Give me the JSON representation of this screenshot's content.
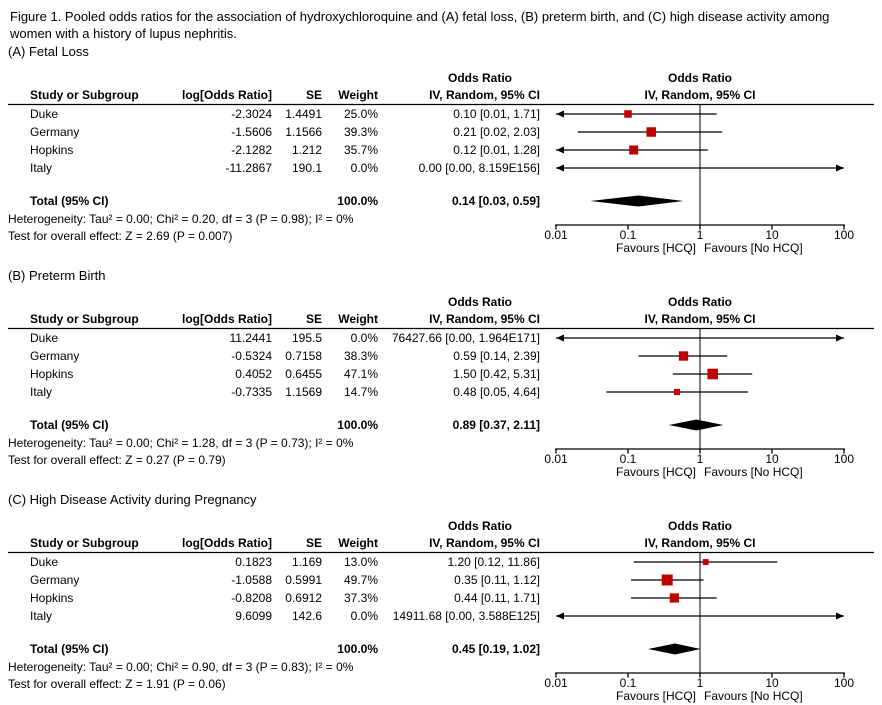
{
  "caption": "Figure 1. Pooled odds ratios for the association of hydroxychloroquine and (A) fetal loss, (B) preterm birth, and (C) high disease activity among women with a history of lupus nephritis.",
  "columns": {
    "study": "Study or Subgroup",
    "log_or": "log[Odds Ratio]",
    "se": "SE",
    "weight": "Weight",
    "effect": "Odds Ratio",
    "method": "IV, Random, 95% CI"
  },
  "axis": {
    "scale": "log",
    "min": 0.01,
    "max": 100,
    "ticks": [
      {
        "v": 0.01,
        "label": "0.01"
      },
      {
        "v": 0.1,
        "label": "0.1"
      },
      {
        "v": 1,
        "label": "1"
      },
      {
        "v": 10,
        "label": "10"
      },
      {
        "v": 100,
        "label": "100"
      }
    ],
    "favours_left": "Favours [HCQ]",
    "favours_right": "Favours [No HCQ]"
  },
  "style": {
    "marker_color": "#C00000",
    "line_color": "#000000",
    "diamond_color": "#000000"
  },
  "chart_data": [
    {
      "type": "forest",
      "label": "(A) Fetal Loss",
      "xscale": "log",
      "xlim": [
        0.01,
        100
      ],
      "studies": [
        {
          "name": "Duke",
          "log_or": "-2.3024",
          "se": "1.4491",
          "weight": "25.0%",
          "weight_pct": 25.0,
          "ci_text": "0.10 [0.01, 1.71]",
          "or": 0.1,
          "lo": 0.01,
          "hi": 1.71
        },
        {
          "name": "Germany",
          "log_or": "-1.5606",
          "se": "1.1566",
          "weight": "39.3%",
          "weight_pct": 39.3,
          "ci_text": "0.21 [0.02, 2.03]",
          "or": 0.21,
          "lo": 0.02,
          "hi": 2.03
        },
        {
          "name": "Hopkins",
          "log_or": "-2.1282",
          "se": "1.212",
          "weight": "35.7%",
          "weight_pct": 35.7,
          "ci_text": "0.12 [0.01, 1.28]",
          "or": 0.12,
          "lo": 0.01,
          "hi": 1.28
        },
        {
          "name": "Italy",
          "log_or": "-11.2867",
          "se": "190.1",
          "weight": "0.0%",
          "weight_pct": 0.0,
          "ci_text": "0.00 [0.00, 8.159E156]",
          "or": 1.25e-05,
          "lo": 0,
          "hi": 8.159e+156
        }
      ],
      "total": {
        "label": "Total (95% CI)",
        "weight": "100.0%",
        "ci_text": "0.14 [0.03, 0.59]",
        "or": 0.14,
        "lo": 0.03,
        "hi": 0.59
      },
      "heterogeneity": "Heterogeneity: Tau² = 0.00; Chi² = 0.20, df = 3 (P = 0.98); I² = 0%",
      "overall_effect": "Test for overall effect: Z = 2.69 (P = 0.007)"
    },
    {
      "type": "forest",
      "label": "(B) Preterm Birth",
      "xscale": "log",
      "xlim": [
        0.01,
        100
      ],
      "studies": [
        {
          "name": "Duke",
          "log_or": "11.2441",
          "se": "195.5",
          "weight": "0.0%",
          "weight_pct": 0.0,
          "ci_text": "76427.66 [0.00, 1.964E171]",
          "or": 76427.66,
          "lo": 0,
          "hi": 1.964e+171
        },
        {
          "name": "Germany",
          "log_or": "-0.5324",
          "se": "0.7158",
          "weight": "38.3%",
          "weight_pct": 38.3,
          "ci_text": "0.59 [0.14, 2.39]",
          "or": 0.59,
          "lo": 0.14,
          "hi": 2.39
        },
        {
          "name": "Hopkins",
          "log_or": "0.4052",
          "se": "0.6455",
          "weight": "47.1%",
          "weight_pct": 47.1,
          "ci_text": "1.50 [0.42, 5.31]",
          "or": 1.5,
          "lo": 0.42,
          "hi": 5.31
        },
        {
          "name": "Italy",
          "log_or": "-0.7335",
          "se": "1.1569",
          "weight": "14.7%",
          "weight_pct": 14.7,
          "ci_text": "0.48 [0.05, 4.64]",
          "or": 0.48,
          "lo": 0.05,
          "hi": 4.64
        }
      ],
      "total": {
        "label": "Total (95% CI)",
        "weight": "100.0%",
        "ci_text": "0.89 [0.37, 2.11]",
        "or": 0.89,
        "lo": 0.37,
        "hi": 2.11
      },
      "heterogeneity": "Heterogeneity: Tau² = 0.00; Chi² = 1.28, df = 3 (P = 0.73); I² = 0%",
      "overall_effect": "Test for overall effect: Z = 0.27 (P = 0.79)"
    },
    {
      "type": "forest",
      "label": "(C) High Disease Activity during Pregnancy",
      "xscale": "log",
      "xlim": [
        0.01,
        100
      ],
      "studies": [
        {
          "name": "Duke",
          "log_or": "0.1823",
          "se": "1.169",
          "weight": "13.0%",
          "weight_pct": 13.0,
          "ci_text": "1.20 [0.12, 11.86]",
          "or": 1.2,
          "lo": 0.12,
          "hi": 11.86
        },
        {
          "name": "Germany",
          "log_or": "-1.0588",
          "se": "0.5991",
          "weight": "49.7%",
          "weight_pct": 49.7,
          "ci_text": "0.35 [0.11, 1.12]",
          "or": 0.35,
          "lo": 0.11,
          "hi": 1.12
        },
        {
          "name": "Hopkins",
          "log_or": "-0.8208",
          "se": "0.6912",
          "weight": "37.3%",
          "weight_pct": 37.3,
          "ci_text": "0.44 [0.11, 1.71]",
          "or": 0.44,
          "lo": 0.11,
          "hi": 1.71
        },
        {
          "name": "Italy",
          "log_or": "9.6099",
          "se": "142.6",
          "weight": "0.0%",
          "weight_pct": 0.0,
          "ci_text": "14911.68 [0.00, 3.588E125]",
          "or": 14911.68,
          "lo": 0,
          "hi": 3.588e+125
        }
      ],
      "total": {
        "label": "Total (95% CI)",
        "weight": "100.0%",
        "ci_text": "0.45 [0.19, 1.02]",
        "or": 0.45,
        "lo": 0.19,
        "hi": 1.02
      },
      "heterogeneity": "Heterogeneity: Tau² = 0.00; Chi² = 0.90, df = 3 (P = 0.83); I² = 0%",
      "overall_effect": "Test for overall effect: Z = 1.91 (P = 0.06)"
    }
  ]
}
